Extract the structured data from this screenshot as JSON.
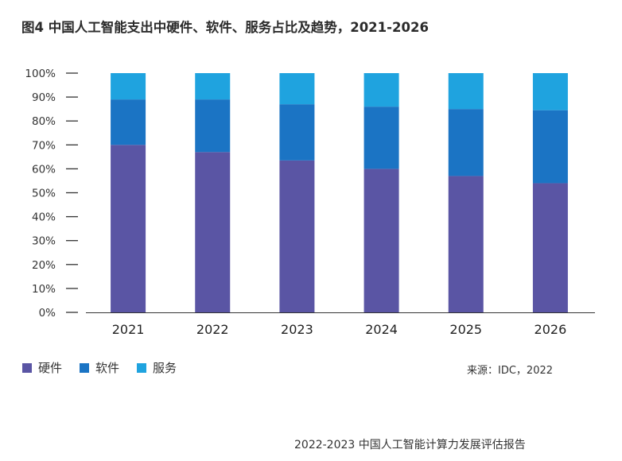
{
  "chart_data": {
    "type": "bar",
    "stacked": true,
    "title": "图4 中国人工智能支出中硬件、软件、服务占比及趋势，2021-2026",
    "categories": [
      "2021",
      "2022",
      "2023",
      "2024",
      "2025",
      "2026"
    ],
    "y_ticks": [
      "0%",
      "10%",
      "20%",
      "30%",
      "40%",
      "50%",
      "60%",
      "70%",
      "80%",
      "90%",
      "100%"
    ],
    "ylim": [
      0,
      100
    ],
    "grid": false,
    "legend_position": "bottom-left",
    "series": [
      {
        "name": "硬件",
        "color": "#5a55a4",
        "values": [
          70,
          67,
          63.5,
          60,
          57,
          54
        ]
      },
      {
        "name": "软件",
        "color": "#1b74c4",
        "values": [
          19,
          22,
          23.5,
          26,
          28,
          30.5
        ]
      },
      {
        "name": "服务",
        "color": "#1fa3df",
        "values": [
          11,
          11,
          13,
          14,
          15,
          15.5
        ]
      }
    ]
  },
  "source": "来源：IDC，2022",
  "footer": "2022-2023 中国人工智能计算力发展评估报告"
}
